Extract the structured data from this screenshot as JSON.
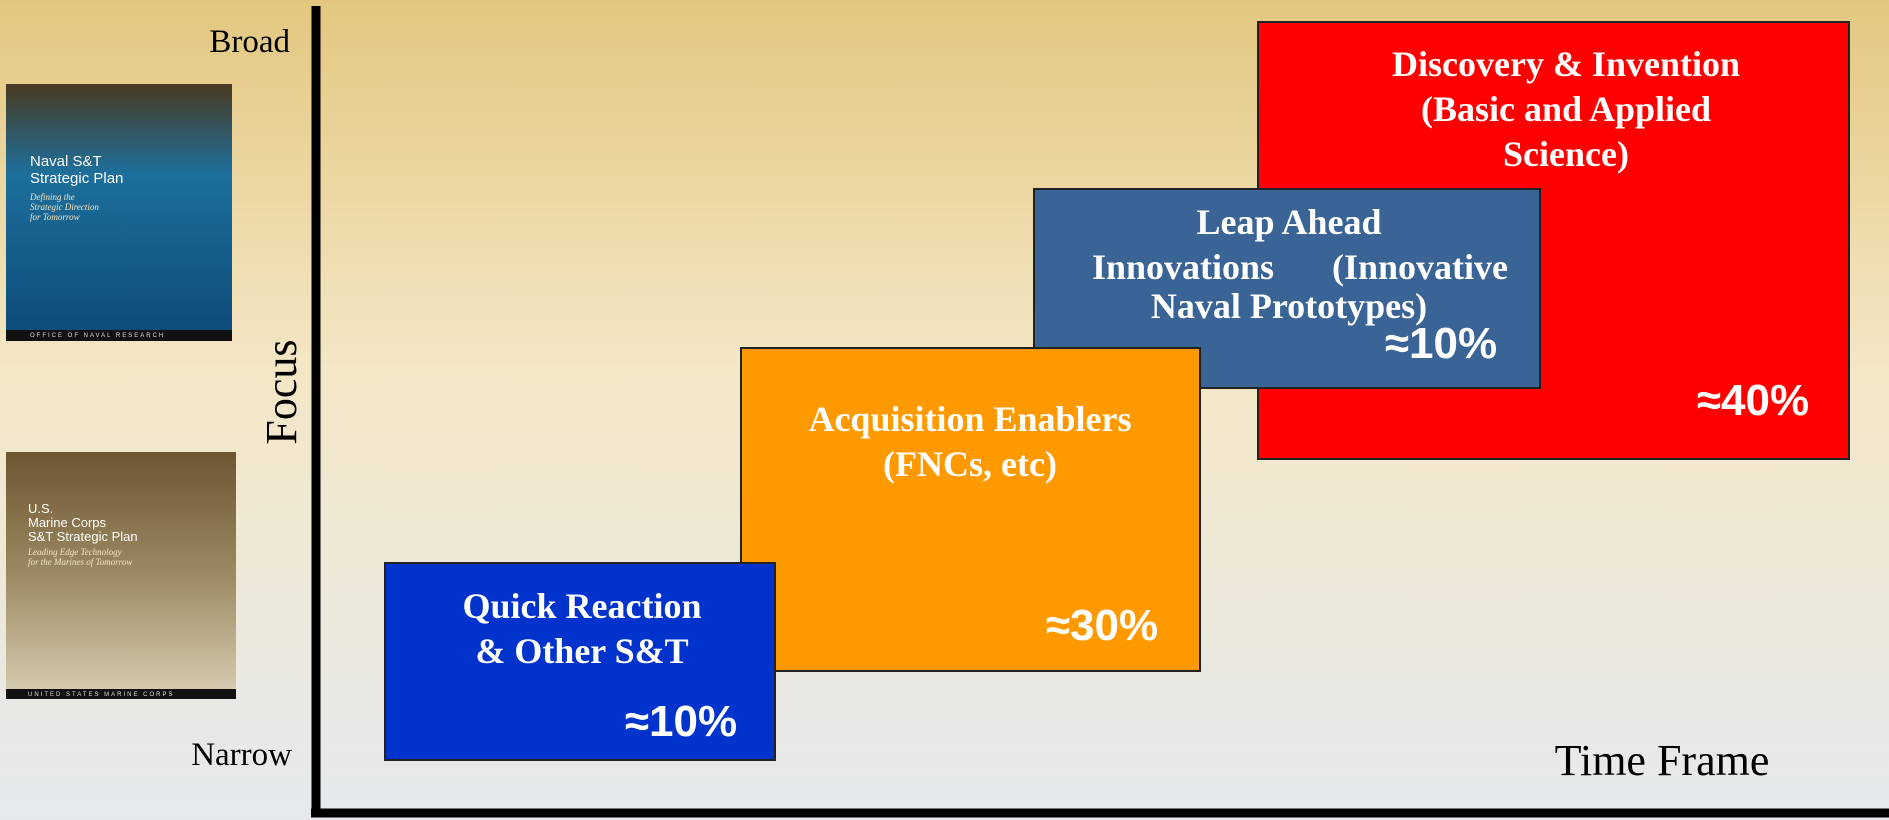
{
  "axes": {
    "y_label": "Focus",
    "y_top": "Broad",
    "y_bottom": "Narrow",
    "x_label": "Time Frame"
  },
  "covers": [
    {
      "title_lines": [
        "Naval S&T",
        "Strategic Plan"
      ],
      "subtitle_lines": [
        "Defining the",
        "Strategic Direction",
        "for Tomorrow"
      ],
      "footer": "OFFICE OF NAVAL RESEARCH"
    },
    {
      "title_lines": [
        "U.S.",
        "Marine Corps",
        "S&T Strategic Plan"
      ],
      "subtitle_lines": [
        "Leading Edge Technology",
        "for the Marines of Tomorrow"
      ],
      "footer": "UNITED STATES MARINE CORPS"
    }
  ],
  "boxes": [
    {
      "title_lines": [
        "Discovery & Invention",
        "(Basic and Applied",
        "Science)"
      ],
      "share": "≈40%"
    },
    {
      "title_lines": [
        "Leap Ahead",
        "Innovations",
        "(Innovative",
        "Naval Prototypes)"
      ],
      "share": "≈10%"
    },
    {
      "title_lines": [
        "Acquisition Enablers",
        "(FNCs, etc)"
      ],
      "share": "≈30%"
    },
    {
      "title_lines": [
        "Quick Reaction",
        "& Other S&T"
      ],
      "share": "≈10%"
    }
  ]
}
